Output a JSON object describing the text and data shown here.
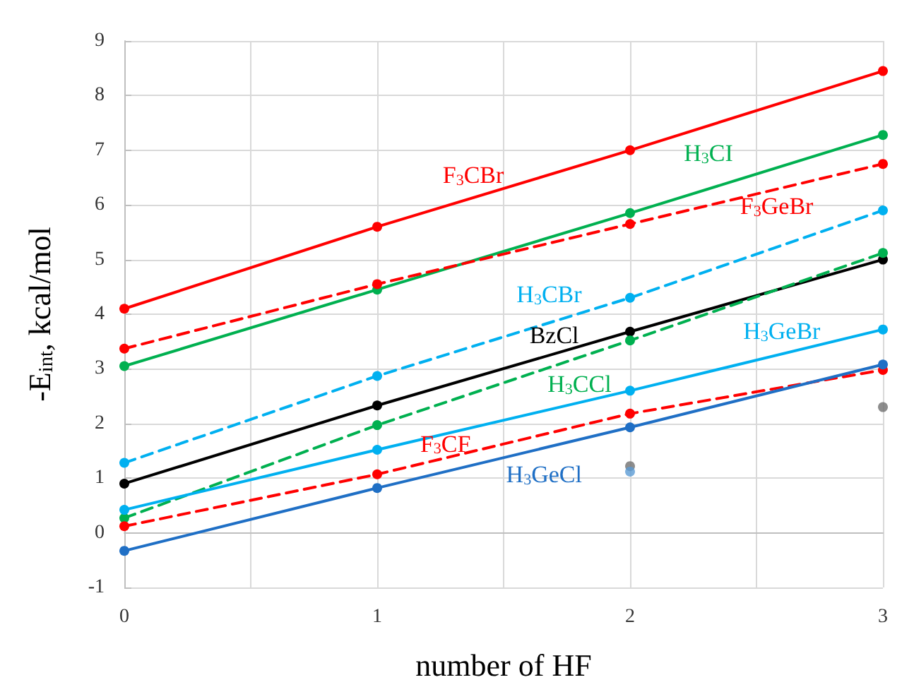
{
  "chart_data": {
    "type": "line",
    "xlabel": "number of HF",
    "ylabel": "-E$_{int}$, kcal/mol",
    "x": [
      0,
      1,
      2,
      3
    ],
    "xlim": [
      0,
      3
    ],
    "xticks": [
      0,
      1,
      2,
      3
    ],
    "ylim": [
      -1,
      9
    ],
    "yticks": [
      -1,
      0,
      1,
      2,
      3,
      4,
      5,
      6,
      7,
      8,
      9
    ],
    "grid": true,
    "marker": "circle",
    "legend": false,
    "series": [
      {
        "name": "F$_{3}$CBr",
        "color": "#ff0000",
        "line_style": "solid",
        "values": [
          4.1,
          5.6,
          7.0,
          8.45
        ]
      },
      {
        "name": "H$_{3}$CI",
        "color": "#00b050",
        "line_style": "solid",
        "values": [
          3.05,
          4.45,
          5.85,
          7.28
        ]
      },
      {
        "name": "F$_{3}$GeBr",
        "color": "#ff0000",
        "line_style": "dashed",
        "values": [
          3.37,
          4.55,
          5.65,
          6.75
        ]
      },
      {
        "name": "H$_{3}$CBr",
        "color": "#00b0f0",
        "line_style": "dashed",
        "values": [
          1.28,
          2.87,
          4.3,
          5.9
        ]
      },
      {
        "name": "BzCl",
        "color": "#000000",
        "line_style": "solid",
        "values": [
          0.9,
          2.33,
          3.68,
          5.0
        ]
      },
      {
        "name": "H$_{3}$CCl",
        "color": "#00b050",
        "line_style": "dashed",
        "values": [
          0.27,
          1.97,
          3.52,
          5.12
        ]
      },
      {
        "name": "H$_{3}$GeBr",
        "color": "#00b0f0",
        "line_style": "solid",
        "values": [
          0.42,
          1.52,
          2.6,
          3.72
        ]
      },
      {
        "name": "F$_{3}$CF",
        "color": "#ff0000",
        "line_style": "dashed",
        "values": [
          0.12,
          1.07,
          2.18,
          2.98
        ]
      },
      {
        "name": "H$_{3}$GeCl",
        "color": "#1f6fc5",
        "line_style": "solid",
        "values": [
          -0.33,
          0.82,
          1.93,
          3.08
        ]
      },
      {
        "type": "scatter",
        "color": "#707070",
        "values": [
          null,
          null,
          1.22,
          2.3
        ]
      },
      {
        "type": "scatter",
        "color": "#5b9bd5",
        "values": [
          null,
          null,
          1.12,
          null
        ]
      }
    ]
  }
}
